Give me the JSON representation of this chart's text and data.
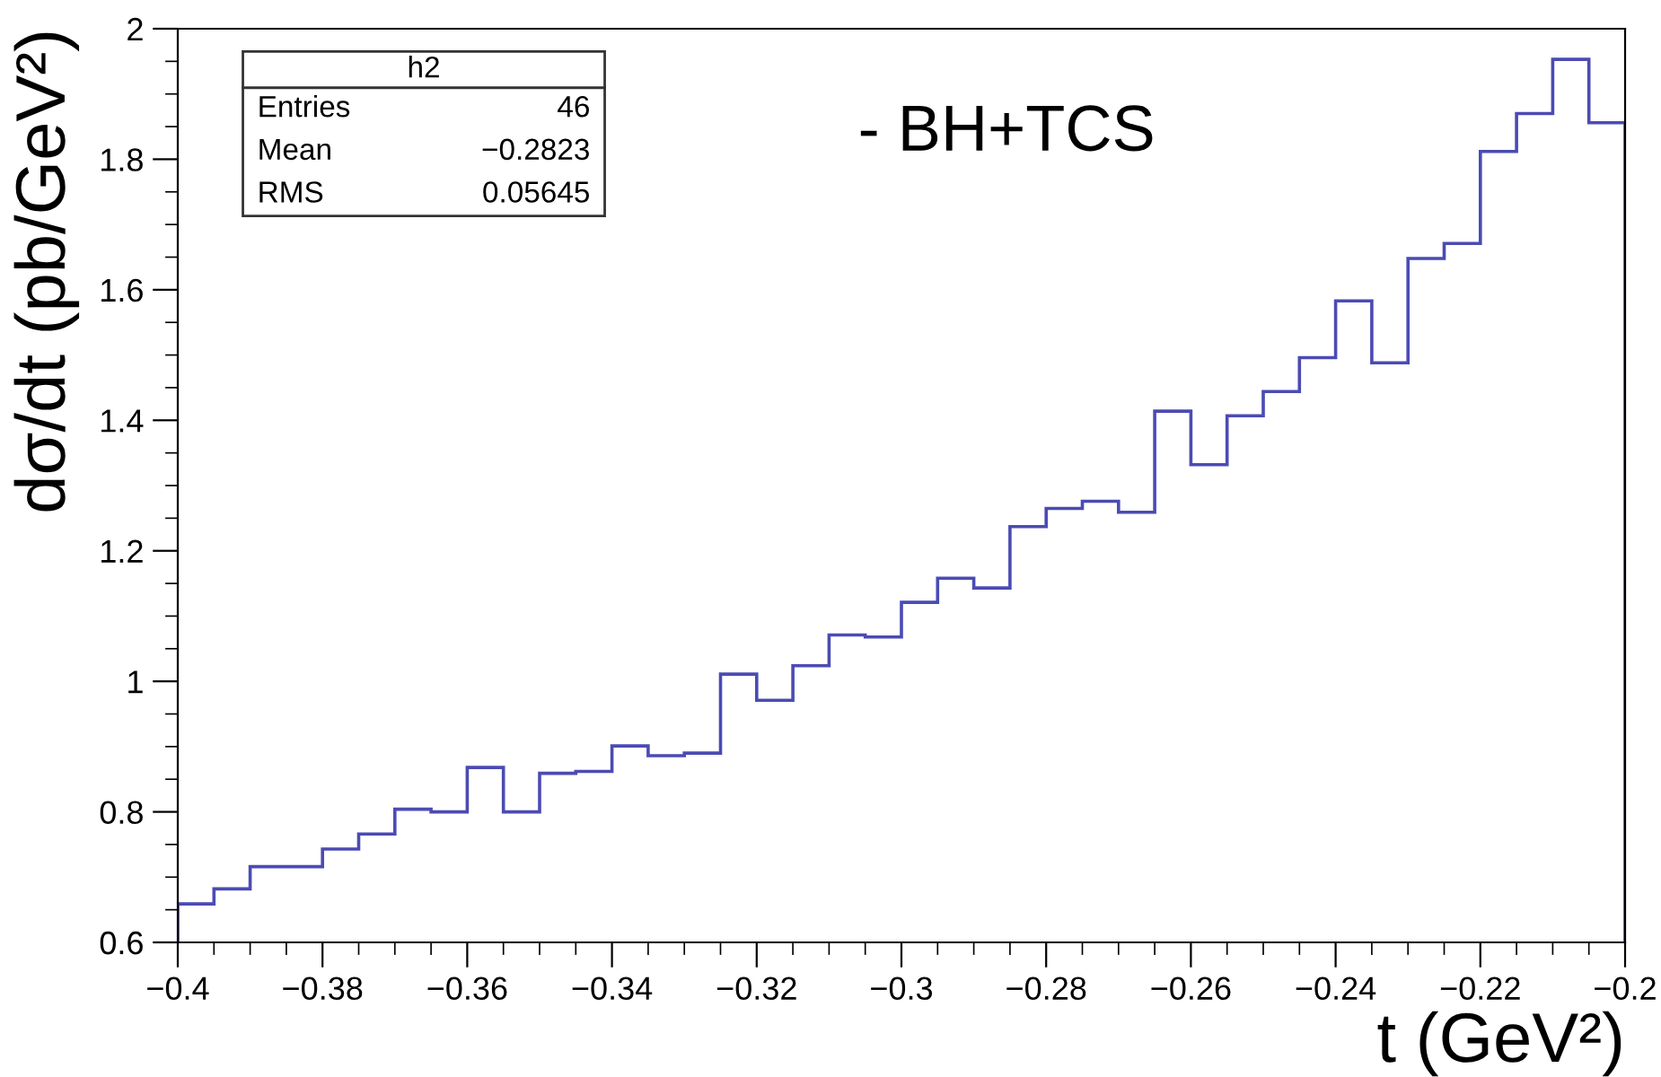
{
  "chart_data": {
    "type": "histogram",
    "xlabel": "t (GeV²)",
    "ylabel": "dσ/dt (pb/GeV²)",
    "bins": [
      -0.4,
      -0.395,
      -0.39,
      -0.385,
      -0.38,
      -0.375,
      -0.37,
      -0.365,
      -0.36,
      -0.355,
      -0.35,
      -0.345,
      -0.34,
      -0.335,
      -0.33,
      -0.325,
      -0.32,
      -0.315,
      -0.31,
      -0.305,
      -0.3,
      -0.295,
      -0.29,
      -0.285,
      -0.28,
      -0.275,
      -0.27,
      -0.265,
      -0.26,
      -0.255,
      -0.25,
      -0.245,
      -0.24,
      -0.235,
      -0.23,
      -0.225,
      -0.22,
      -0.215,
      -0.21,
      -0.205,
      -0.2
    ],
    "values": [
      0.659,
      0.682,
      0.716,
      0.716,
      0.743,
      0.766,
      0.804,
      0.8,
      0.868,
      0.8,
      0.859,
      0.862,
      0.901,
      0.886,
      0.89,
      1.011,
      0.971,
      1.024,
      1.071,
      1.068,
      1.121,
      1.158,
      1.143,
      1.237,
      1.265,
      1.276,
      1.259,
      1.414,
      1.332,
      1.407,
      1.444,
      1.496,
      1.583,
      1.488,
      1.648,
      1.671,
      1.812,
      1.87,
      1.953,
      1.856
    ],
    "color": "#4b4bb4",
    "xlim": [
      -0.4,
      -0.2
    ],
    "xticks": [
      {
        "value": -0.4,
        "label": "−0.4"
      },
      {
        "value": -0.38,
        "label": "−0.38"
      },
      {
        "value": -0.36,
        "label": "−0.36"
      },
      {
        "value": -0.34,
        "label": "−0.34"
      },
      {
        "value": -0.32,
        "label": "−0.32"
      },
      {
        "value": -0.3,
        "label": "−0.3"
      },
      {
        "value": -0.28,
        "label": "−0.28"
      },
      {
        "value": -0.26,
        "label": "−0.26"
      },
      {
        "value": -0.24,
        "label": "−0.24"
      },
      {
        "value": -0.22,
        "label": "−0.22"
      },
      {
        "value": -0.2,
        "label": "−0.2"
      }
    ],
    "ylim": [
      0.6,
      2.0
    ],
    "yticks": [
      {
        "value": 0.6,
        "label": "0.6"
      },
      {
        "value": 0.65,
        "label": null
      },
      {
        "value": 0.7,
        "label": null
      },
      {
        "value": 0.75,
        "label": null
      },
      {
        "value": 0.8,
        "label": "0.8"
      },
      {
        "value": 0.85,
        "label": null
      },
      {
        "value": 0.9,
        "label": null
      },
      {
        "value": 0.95,
        "label": null
      },
      {
        "value": 1.0,
        "label": "1"
      },
      {
        "value": 1.05,
        "label": null
      },
      {
        "value": 1.1,
        "label": null
      },
      {
        "value": 1.15,
        "label": null
      },
      {
        "value": 1.2,
        "label": "1.2"
      },
      {
        "value": 1.25,
        "label": null
      },
      {
        "value": 1.3,
        "label": null
      },
      {
        "value": 1.35,
        "label": null
      },
      {
        "value": 1.4,
        "label": "1.4"
      },
      {
        "value": 1.45,
        "label": null
      },
      {
        "value": 1.5,
        "label": null
      },
      {
        "value": 1.55,
        "label": null
      },
      {
        "value": 1.6,
        "label": "1.6"
      },
      {
        "value": 1.65,
        "label": null
      },
      {
        "value": 1.7,
        "label": null
      },
      {
        "value": 1.75,
        "label": null
      },
      {
        "value": 1.8,
        "label": "1.8"
      },
      {
        "value": 1.85,
        "label": null
      },
      {
        "value": 1.9,
        "label": null
      },
      {
        "value": 1.95,
        "label": null
      },
      {
        "value": 2.0,
        "label": "2"
      }
    ],
    "annotations": [
      "h2",
      "Entries",
      "46",
      "Mean",
      "−0.2823",
      "RMS",
      "0.05645",
      "- BH+TCS"
    ],
    "grid": false,
    "legend": false
  }
}
